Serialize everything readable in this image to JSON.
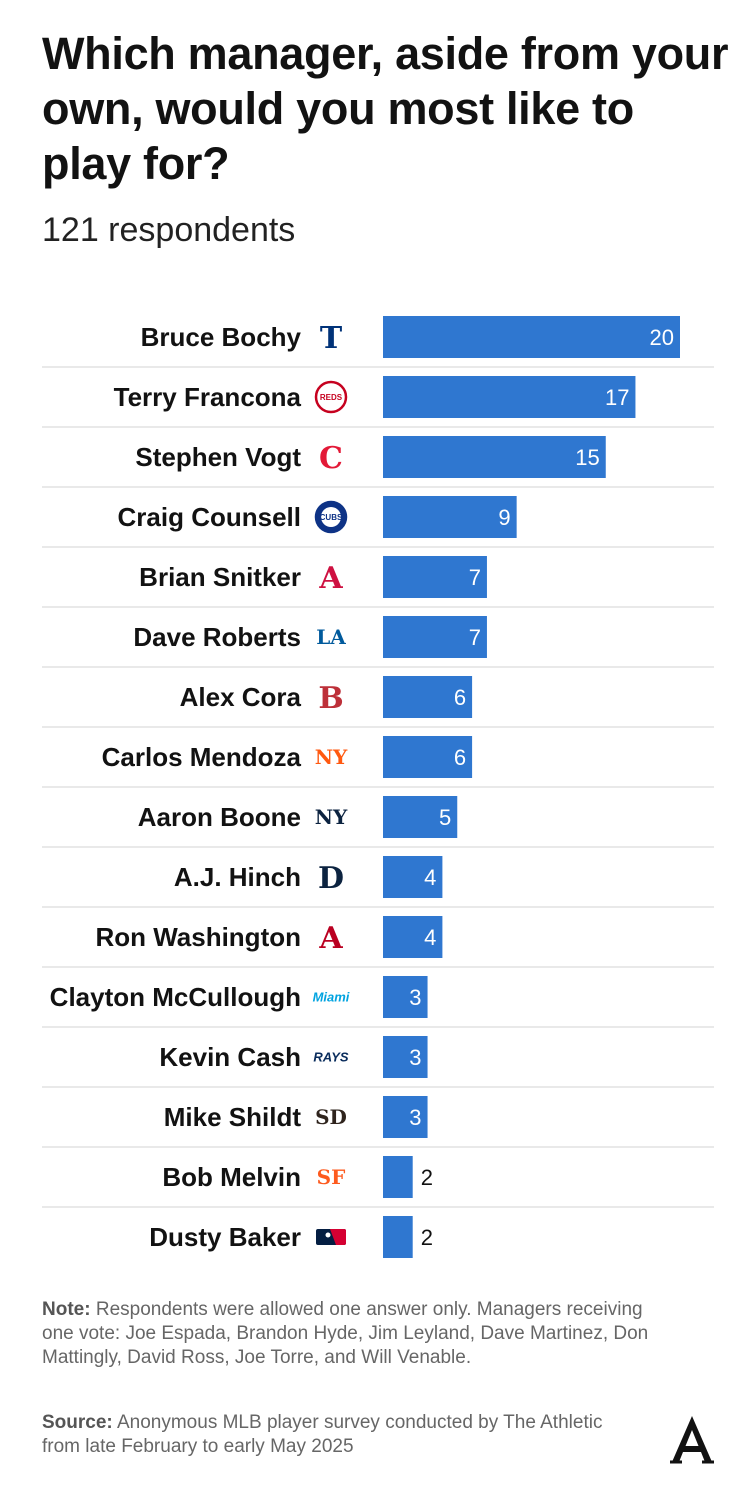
{
  "title": "Which manager, aside from your own, would you most like to play for?",
  "subtitle": "121 respondents",
  "note_label": "Note:",
  "note_text": " Respondents were allowed one answer only. Managers receiving one vote: Joe Espada, Brandon Hyde, Jim Leyland, Dave Martinez, Don Mattingly, David Ross, Joe Torre, and Will Venable.",
  "source_label": "Source:",
  "source_text": " Anonymous MLB player survey conducted by The Athletic from late February to early May 2025",
  "brand_logo": "A",
  "colors": {
    "bar": "#2f77d0",
    "divider": "#e2e2e2"
  },
  "chart_data": {
    "type": "bar",
    "orientation": "horizontal",
    "title": "Which manager, aside from your own, would you most like to play for?",
    "subtitle": "121 respondents",
    "categories": [
      "Bruce Bochy",
      "Terry Francona",
      "Stephen Vogt",
      "Craig Counsell",
      "Brian Snitker",
      "Dave Roberts",
      "Alex Cora",
      "Carlos Mendoza",
      "Aaron Boone",
      "A.J. Hinch",
      "Ron Washington",
      "Clayton McCullough",
      "Kevin Cash",
      "Mike Shildt",
      "Bob Melvin",
      "Dusty Baker"
    ],
    "values": [
      20,
      17,
      15,
      9,
      7,
      7,
      6,
      6,
      5,
      4,
      4,
      3,
      3,
      3,
      2,
      2
    ],
    "team_logos": [
      {
        "icon": "rangers-logo-icon",
        "text": "T",
        "color": "#003278"
      },
      {
        "icon": "reds-logo-icon",
        "text": "REDS",
        "color": "#c6011f"
      },
      {
        "icon": "guardians-logo-icon",
        "text": "C",
        "color": "#e31937"
      },
      {
        "icon": "cubs-logo-icon",
        "text": "CUBS",
        "color": "#0e3386"
      },
      {
        "icon": "braves-logo-icon",
        "text": "A",
        "color": "#ce1141"
      },
      {
        "icon": "dodgers-logo-icon",
        "text": "LA",
        "color": "#005a9c"
      },
      {
        "icon": "red-sox-logo-icon",
        "text": "B",
        "color": "#bd3039"
      },
      {
        "icon": "mets-logo-icon",
        "text": "NY",
        "color": "#ff5910"
      },
      {
        "icon": "yankees-logo-icon",
        "text": "NY",
        "color": "#0c2340"
      },
      {
        "icon": "tigers-logo-icon",
        "text": "D",
        "color": "#0c2340"
      },
      {
        "icon": "angels-logo-icon",
        "text": "A",
        "color": "#ba0021"
      },
      {
        "icon": "marlins-logo-icon",
        "text": "Miami",
        "color": "#00a3e0"
      },
      {
        "icon": "rays-logo-icon",
        "text": "RAYS",
        "color": "#092c5c"
      },
      {
        "icon": "padres-logo-icon",
        "text": "SD",
        "color": "#2f241d"
      },
      {
        "icon": "giants-logo-icon",
        "text": "SF",
        "color": "#fd5a1e"
      },
      {
        "icon": "mlb-logo-icon",
        "text": "",
        "color": "#041e42"
      }
    ],
    "xlim": [
      0,
      20
    ],
    "grid": false,
    "legend": "none"
  }
}
